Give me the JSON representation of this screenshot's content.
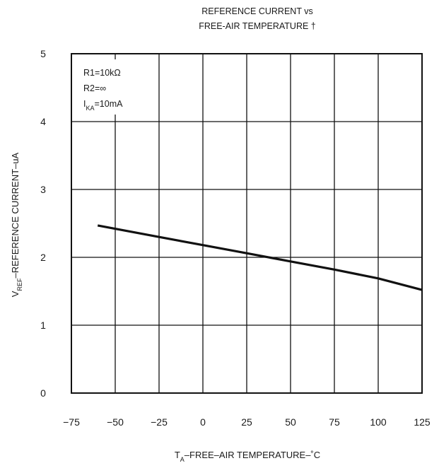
{
  "chart_data": {
    "type": "line",
    "title_lines": [
      "REFERENCE CURRENT vs",
      "FREE-AIR TEMPERATURE †"
    ],
    "xlabel": {
      "main": "T",
      "sub": "A",
      "rest": "–FREE–AIR TEMPERATURE–˚C"
    },
    "ylabel": {
      "main": "V",
      "sub": "REF",
      "rest": "–REFERENCE CURRENT–uA"
    },
    "xlim": [
      -75,
      125
    ],
    "ylim": [
      0,
      5
    ],
    "x_ticks": [
      -75,
      -50,
      -25,
      0,
      25,
      50,
      75,
      100,
      125
    ],
    "x_tick_labels": [
      "−75",
      "−50",
      "−25",
      "0",
      "25",
      "50",
      "75",
      "100",
      "125"
    ],
    "y_ticks": [
      0,
      1,
      2,
      3,
      4,
      5
    ],
    "y_tick_labels": [
      "0",
      "1",
      "2",
      "3",
      "4",
      "5"
    ],
    "grid": true,
    "series": [
      {
        "x": [
          -60,
          -25,
          0,
          25,
          50,
          75,
          100,
          125
        ],
        "y": [
          2.47,
          2.3,
          2.18,
          2.06,
          1.94,
          1.82,
          1.69,
          1.52
        ]
      }
    ],
    "annotations": [
      {
        "main": "R1=10kΩ"
      },
      {
        "main": "R2=∞"
      },
      {
        "main": "I",
        "sub": "KA",
        "rest": "=10mA"
      }
    ],
    "line_color": "#111111",
    "grid_color": "#111111"
  }
}
